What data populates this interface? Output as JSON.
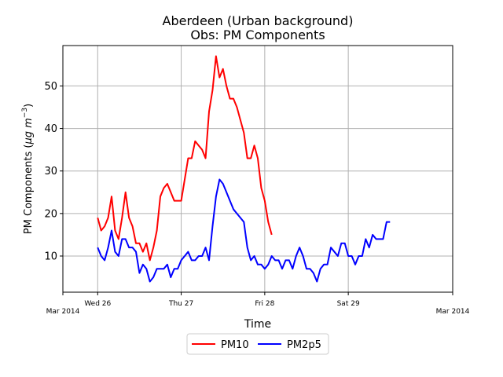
{
  "chart_data": {
    "type": "line",
    "title_line1": "Aberdeen (Urban background)",
    "title_line2": "Obs: PM Components",
    "xlabel": "Time",
    "ylabel_main": "PM Components (",
    "ylabel_unit": "μg m",
    "ylabel_exp": "−3",
    "ylabel_close": ")",
    "x_start_date": "2014-03-26",
    "xlim_hours": [
      -10,
      102
    ],
    "ylim": [
      1.5,
      59.5
    ],
    "grid": true,
    "legend_position": "bottom-center",
    "x_ticks": [
      {
        "hour": -10,
        "label": "",
        "sub": "Mar 2014"
      },
      {
        "hour": 0,
        "label": "Wed 26",
        "sub": ""
      },
      {
        "hour": 24,
        "label": "Thu 27",
        "sub": ""
      },
      {
        "hour": 48,
        "label": "Fri 28",
        "sub": ""
      },
      {
        "hour": 72,
        "label": "Sat 29",
        "sub": ""
      },
      {
        "hour": 102,
        "label": "",
        "sub": "Mar 2014"
      }
    ],
    "y_ticks": [
      10,
      20,
      30,
      40,
      50
    ],
    "series": [
      {
        "name": "PM10",
        "color": "#ff0000",
        "start_hour": 0,
        "values": [
          19,
          16,
          17,
          19,
          24,
          16,
          14,
          19,
          25,
          19,
          17,
          13,
          13,
          11,
          13,
          9,
          12,
          16,
          24,
          26,
          27,
          25,
          23,
          23,
          23,
          28,
          33,
          33,
          37,
          36,
          35,
          33,
          44,
          49,
          57,
          52,
          54,
          50,
          47,
          47,
          45,
          42,
          39,
          33,
          33,
          36,
          33,
          26,
          23,
          18,
          15
        ]
      },
      {
        "name": "PM2p5",
        "color": "#0000ff",
        "start_hour": 0,
        "values": [
          12,
          10,
          9,
          12,
          16,
          11,
          10,
          14,
          14,
          12,
          12,
          11,
          6,
          8,
          7,
          4,
          5,
          7,
          7,
          7,
          8,
          5,
          7,
          7,
          9,
          10,
          11,
          9,
          9,
          10,
          10,
          12,
          9,
          17,
          24,
          28,
          27,
          25,
          23,
          21,
          20,
          19,
          18,
          12,
          9,
          10,
          8,
          8,
          7,
          8,
          10,
          9,
          9,
          7,
          9,
          9,
          7,
          10,
          12,
          10,
          7,
          7,
          6,
          4,
          7,
          8,
          8,
          12,
          11,
          10,
          13,
          13,
          10,
          10,
          8,
          10,
          10,
          14,
          12,
          15,
          14,
          14,
          14,
          18,
          18
        ]
      }
    ]
  }
}
